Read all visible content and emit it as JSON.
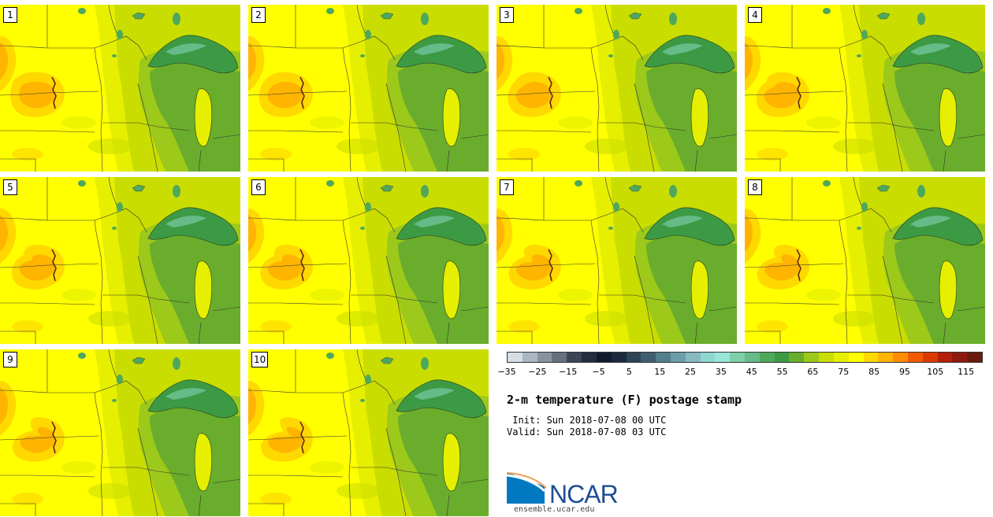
{
  "panels": [
    {
      "label": "1"
    },
    {
      "label": "2"
    },
    {
      "label": "3"
    },
    {
      "label": "4"
    },
    {
      "label": "5"
    },
    {
      "label": "6"
    },
    {
      "label": "7"
    },
    {
      "label": "8"
    },
    {
      "label": "9"
    },
    {
      "label": "10"
    }
  ],
  "legend": {
    "colors": [
      "#d6dde4",
      "#aab6c2",
      "#87929f",
      "#66707e",
      "#3c4557",
      "#222d40",
      "#111b2e",
      "#1b2a3e",
      "#2e4556",
      "#3f5f70",
      "#537f8c",
      "#6b9eaa",
      "#86b9c0",
      "#8fd6cf",
      "#98e6d8",
      "#80cfa8",
      "#66bb88",
      "#4ea85c",
      "#3d9a44",
      "#6aad2c",
      "#9cc91a",
      "#c9dd00",
      "#e6ef00",
      "#ffff00",
      "#ffd800",
      "#ffb400",
      "#ff8c00",
      "#f25a00",
      "#d93a00",
      "#b31f0a",
      "#8e1a0e",
      "#6a1a0e"
    ],
    "ticks": [
      "−35",
      "−25",
      "−15",
      "−5",
      "5",
      "15",
      "25",
      "35",
      "45",
      "55",
      "65",
      "75",
      "85",
      "95",
      "105",
      "115"
    ]
  },
  "title": "2-m temperature (F) postage stamp",
  "init_line": " Init: Sun 2018-07-08 00 UTC",
  "valid_line": "Valid: Sun 2018-07-08 03 UTC",
  "logo": {
    "name": "NCAR",
    "url": "ensemble.ucar.edu"
  }
}
